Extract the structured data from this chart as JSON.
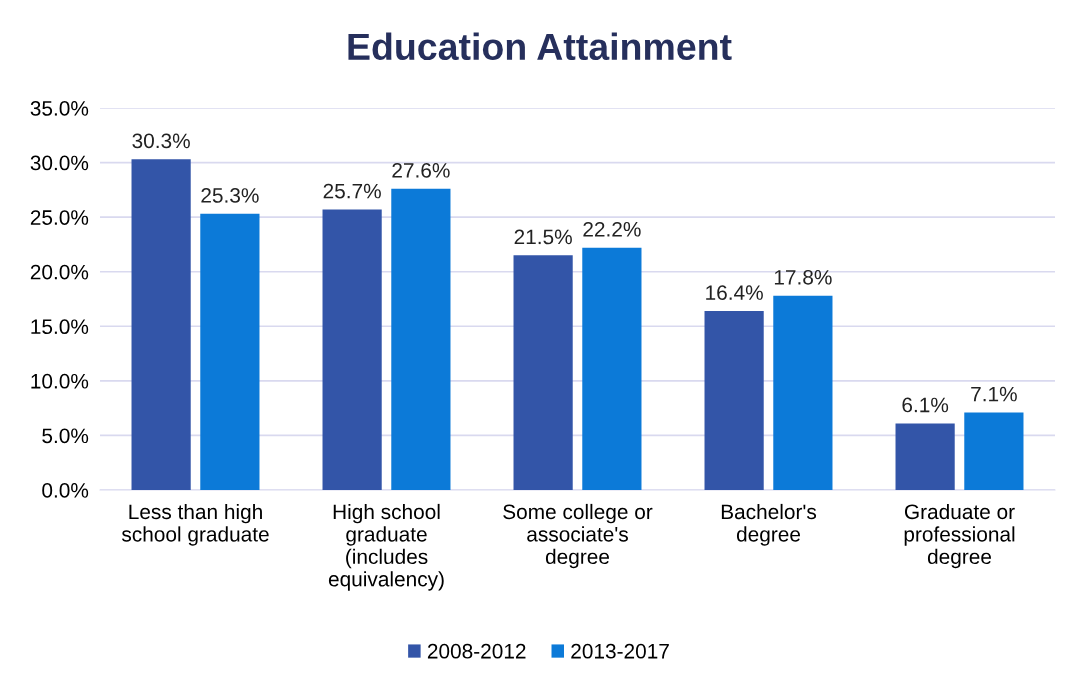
{
  "chart_data": {
    "type": "bar",
    "title": "Education Attainment",
    "categories": [
      "Less than high\nschool graduate",
      "High school\ngraduate\n(includes\nequivalency)",
      "Some college or\nassociate's\ndegree",
      "Bachelor's\ndegree",
      "Graduate or\nprofessional\ndegree"
    ],
    "series": [
      {
        "name": "2008-2012",
        "color": "#3355a8",
        "values": [
          30.3,
          25.7,
          21.5,
          16.4,
          6.1
        ],
        "value_labels": [
          "30.3%",
          "25.7%",
          "21.5%",
          "16.4%",
          "6.1%"
        ]
      },
      {
        "name": "2013-2017",
        "color": "#0c7ad8",
        "values": [
          25.3,
          27.6,
          22.2,
          17.8,
          7.1
        ],
        "value_labels": [
          "25.3%",
          "27.6%",
          "22.2%",
          "17.8%",
          "7.1%"
        ]
      }
    ],
    "ylim": [
      0,
      35
    ],
    "yticks": [
      {
        "value": 0,
        "label": "0.0%"
      },
      {
        "value": 5,
        "label": "5.0%"
      },
      {
        "value": 10,
        "label": "10.0%"
      },
      {
        "value": 15,
        "label": "15.0%"
      },
      {
        "value": 20,
        "label": "20.0%"
      },
      {
        "value": 25,
        "label": "25.0%"
      },
      {
        "value": 30,
        "label": "30.0%"
      },
      {
        "value": 35,
        "label": "35.0%"
      }
    ],
    "grid": "y",
    "legend": "bottom"
  }
}
